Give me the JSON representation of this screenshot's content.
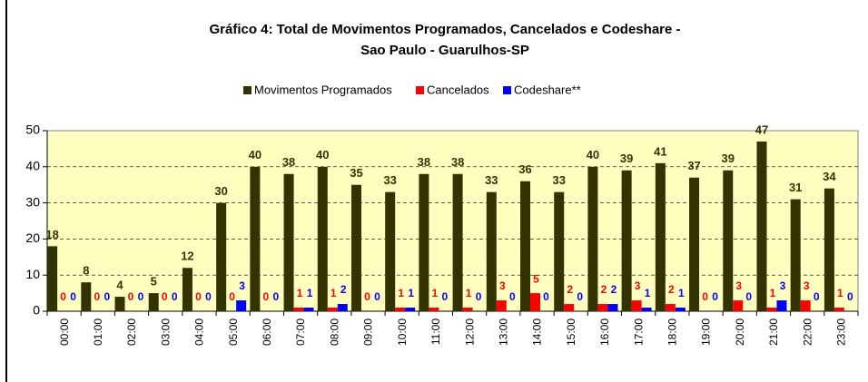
{
  "chart_data": {
    "type": "bar",
    "title": [
      "Gráfico 4: Total de Movimentos Programados, Cancelados e Codeshare -",
      "Sao Paulo - Guarulhos-SP"
    ],
    "categories": [
      "00:00",
      "01:00",
      "02:00",
      "03:00",
      "04:00",
      "05:00",
      "06:00",
      "07:00",
      "08:00",
      "09:00",
      "10:00",
      "11:00",
      "12:00",
      "13:00",
      "14:00",
      "15:00",
      "16:00",
      "17:00",
      "18:00",
      "19:00",
      "20:00",
      "21:00",
      "22:00",
      "23:00"
    ],
    "series": [
      {
        "name": "Movimentos Programados",
        "color": "#333300",
        "values": [
          18,
          8,
          4,
          5,
          12,
          30,
          40,
          38,
          40,
          35,
          33,
          38,
          38,
          33,
          36,
          33,
          40,
          39,
          41,
          37,
          39,
          47,
          31,
          34
        ]
      },
      {
        "name": "Cancelados",
        "color": "#ff0000",
        "values": [
          0,
          0,
          0,
          0,
          0,
          0,
          0,
          1,
          1,
          0,
          1,
          1,
          1,
          3,
          5,
          2,
          2,
          3,
          2,
          0,
          3,
          1,
          3,
          1
        ]
      },
      {
        "name": "Codeshare**",
        "color": "#0000ff",
        "values": [
          0,
          0,
          0,
          0,
          0,
          3,
          0,
          1,
          2,
          0,
          1,
          0,
          0,
          0,
          0,
          0,
          2,
          1,
          1,
          0,
          0,
          3,
          0,
          0
        ]
      }
    ],
    "ylim": [
      0,
      50
    ],
    "yticks": [
      0,
      10,
      20,
      30,
      40,
      50
    ],
    "grid": true,
    "legend": "top",
    "plot_background": "#ffffc0"
  }
}
